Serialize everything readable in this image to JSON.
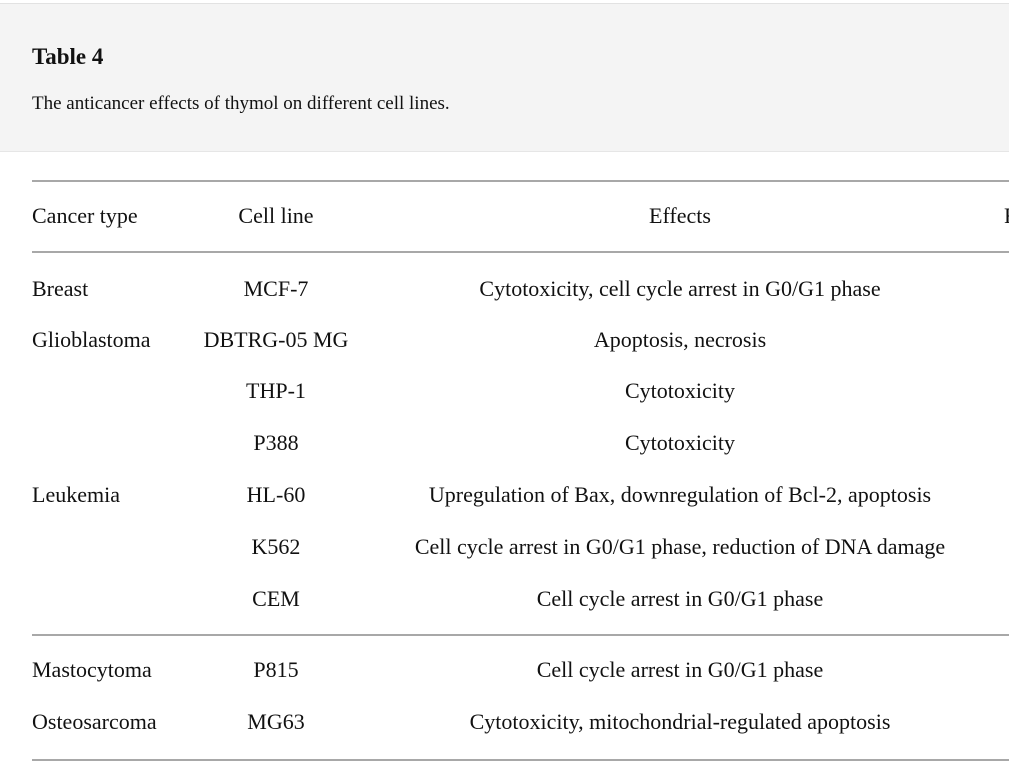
{
  "caption": {
    "label": "Table 4",
    "title": "The anticancer effects of thymol on different cell lines."
  },
  "table": {
    "headers": [
      "Cancer type",
      "Cell line",
      "Effects",
      "R"
    ],
    "rows": [
      {
        "cancer": "Breast",
        "cell": "MCF-7",
        "effects": "Cytotoxicity, cell cycle arrest in G0/G1 phase"
      },
      {
        "cancer": "Glioblastoma",
        "cell": "DBTRG-05 MG",
        "effects": "Apoptosis, necrosis"
      },
      {
        "cancer": "",
        "cell": "THP-1",
        "effects": "Cytotoxicity"
      },
      {
        "cancer": "",
        "cell": "P388",
        "effects": "Cytotoxicity"
      },
      {
        "cancer": "Leukemia",
        "cell": "HL-60",
        "effects": "Upregulation of Bax, downregulation of Bcl-2, apoptosis"
      },
      {
        "cancer": "",
        "cell": "K562",
        "effects": "Cell cycle arrest in G0/G1 phase, reduction of DNA damage"
      },
      {
        "cancer": "",
        "cell": "CEM",
        "effects": "Cell cycle arrest in G0/G1 phase"
      },
      {
        "cancer": "Mastocytoma",
        "cell": "P815",
        "effects": "Cell cycle arrest in G0/G1 phase"
      },
      {
        "cancer": "Osteosarcoma",
        "cell": "MG63",
        "effects": "Cytotoxicity, mitochondrial-regulated apoptosis"
      }
    ]
  }
}
